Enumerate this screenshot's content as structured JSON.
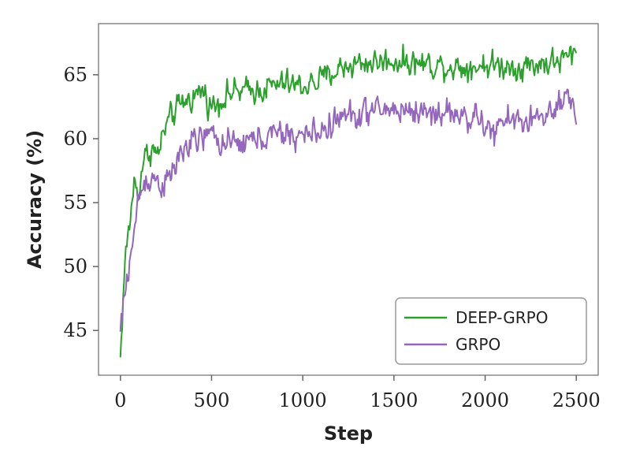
{
  "chart_data": {
    "type": "line",
    "title": "",
    "xlabel": "Step",
    "ylabel": "Accuracy (%)",
    "xlim": [
      -120,
      2620
    ],
    "ylim": [
      41.5,
      69
    ],
    "x_ticks": [
      0,
      500,
      1000,
      1500,
      2000,
      2500
    ],
    "x_tick_labels": [
      "0",
      "500",
      "1000",
      "1500",
      "2000",
      "2500"
    ],
    "y_ticks": [
      45,
      50,
      55,
      60,
      65
    ],
    "y_tick_labels": [
      "45",
      "50",
      "55",
      "60",
      "65"
    ],
    "grid": false,
    "legend_position": "lower-right",
    "series": [
      {
        "name": "DEEP-GRPO",
        "color": "#2ca02c",
        "x": [
          0,
          25,
          50,
          75,
          100,
          125,
          150,
          175,
          200,
          250,
          300,
          350,
          400,
          450,
          500,
          600,
          700,
          800,
          900,
          1000,
          1100,
          1200,
          1300,
          1400,
          1500,
          1600,
          1700,
          1800,
          1900,
          2000,
          2100,
          2200,
          2300,
          2400,
          2500
        ],
        "y": [
          42.9,
          50.5,
          53.2,
          56.6,
          55.6,
          58.4,
          58.8,
          59.3,
          58.6,
          61.0,
          62.1,
          62.9,
          63.3,
          63.8,
          62.5,
          63.6,
          63.7,
          64.0,
          64.3,
          64.1,
          64.6,
          65.5,
          65.9,
          66.0,
          66.1,
          66.0,
          65.8,
          65.7,
          65.6,
          65.8,
          65.7,
          65.6,
          65.9,
          66.0,
          66.7
        ],
        "volatility": 0.75
      },
      {
        "name": "GRPO",
        "color": "#9467bd",
        "x": [
          0,
          25,
          50,
          75,
          100,
          125,
          150,
          200,
          250,
          300,
          350,
          400,
          450,
          500,
          600,
          700,
          800,
          900,
          1000,
          1100,
          1200,
          1300,
          1400,
          1500,
          1600,
          1700,
          1800,
          1900,
          2000,
          2050,
          2100,
          2200,
          2300,
          2400,
          2450,
          2500
        ],
        "y": [
          44.9,
          47.8,
          50.5,
          52.4,
          55.5,
          56.3,
          57.0,
          56.8,
          56.3,
          57.8,
          59.3,
          59.6,
          60.1,
          60.3,
          59.4,
          59.8,
          60.2,
          60.3,
          60.2,
          60.6,
          61.6,
          61.9,
          62.2,
          62.3,
          62.2,
          62.0,
          62.1,
          61.7,
          61.2,
          60.2,
          61.5,
          61.4,
          61.6,
          62.2,
          63.2,
          61.4
        ],
        "volatility": 0.8
      }
    ]
  }
}
